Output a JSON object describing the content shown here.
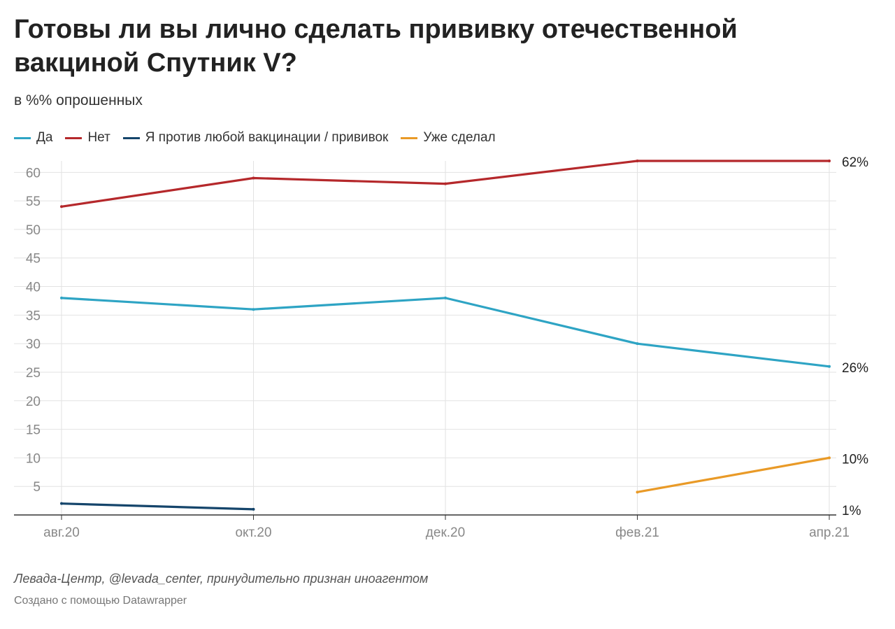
{
  "header": {
    "title": "Готовы ли вы лично сделать прививку отечественной вакциной Спутник V?",
    "subtitle": "в %% опрошенных"
  },
  "colors": {
    "gridline": "#e2e2e2",
    "axis": "#333333",
    "tick_text": "#888888",
    "label_text": "#222222"
  },
  "chart_data": {
    "type": "line",
    "categories": [
      "авг.20",
      "окт.20",
      "дек.20",
      "фев.21",
      "апр.21"
    ],
    "yticks": [
      5,
      10,
      15,
      20,
      25,
      30,
      35,
      40,
      45,
      50,
      55,
      60
    ],
    "ylim": [
      0,
      62
    ],
    "grid": true,
    "legend_position": "top-left",
    "series": [
      {
        "name": "Да",
        "color": "#2ea4c4",
        "values": [
          38,
          36,
          38,
          30,
          26
        ],
        "end_label": "26%"
      },
      {
        "name": "Нет",
        "color": "#b5282b",
        "values": [
          54,
          59,
          58,
          62,
          62
        ],
        "end_label": "62%"
      },
      {
        "name": "Я против любой вакцинации / прививок",
        "color": "#15456b",
        "values": [
          2,
          1,
          null,
          null,
          null
        ],
        "end_label": "1%"
      },
      {
        "name": "Уже сделал",
        "color": "#e99a27",
        "values": [
          null,
          null,
          null,
          4,
          10
        ],
        "end_label": "10%"
      }
    ]
  },
  "footer": {
    "source": "Левада-Центр, @levada_center, принудительно признан иноагентом",
    "credit": "Создано с помощью Datawrapper"
  }
}
